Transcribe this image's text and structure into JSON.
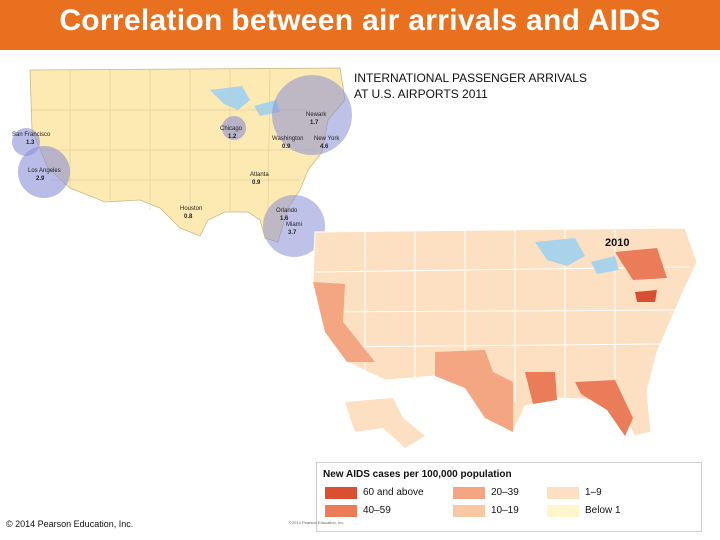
{
  "title": "Correlation between air arrivals and AIDS",
  "map1": {
    "label": "INTERNATIONAL PASSENGER ARRIVALS\nAT U.S. AIRPORTS 2011",
    "airports": [
      {
        "name": "San Francisco",
        "value": "1.3"
      },
      {
        "name": "Los Angeles",
        "value": "2.9"
      },
      {
        "name": "Chicago",
        "value": "1.2"
      },
      {
        "name": "Newark",
        "value": "1.7"
      },
      {
        "name": "Washington",
        "value": "0.9"
      },
      {
        "name": "New York",
        "value": "4.6"
      },
      {
        "name": "Atlanta",
        "value": "0.9"
      },
      {
        "name": "Houston",
        "value": "0.8"
      },
      {
        "name": "Orlando",
        "value": "1.6"
      },
      {
        "name": "Miami",
        "value": "3.7"
      }
    ],
    "colors": {
      "land": "#fde9b2",
      "bubble": "#8b90d6",
      "water": "#a9d3ea"
    }
  },
  "map2": {
    "year": "2010",
    "legend_title": "New AIDS cases per 100,000 population",
    "legend": [
      {
        "label": "60 and above",
        "color": "#d94f32"
      },
      {
        "label": "40–59",
        "color": "#ea7c5a"
      },
      {
        "label": "20–39",
        "color": "#f4a582"
      },
      {
        "label": "10–19",
        "color": "#f9c7a1"
      },
      {
        "label": "1–9",
        "color": "#fde0c2"
      },
      {
        "label": "Below 1",
        "color": "#fff6cc"
      }
    ]
  },
  "footer": {
    "copyright": "© 2014 Pearson Education, Inc.",
    "credit": "©2014 Pearson Education, Inc."
  }
}
